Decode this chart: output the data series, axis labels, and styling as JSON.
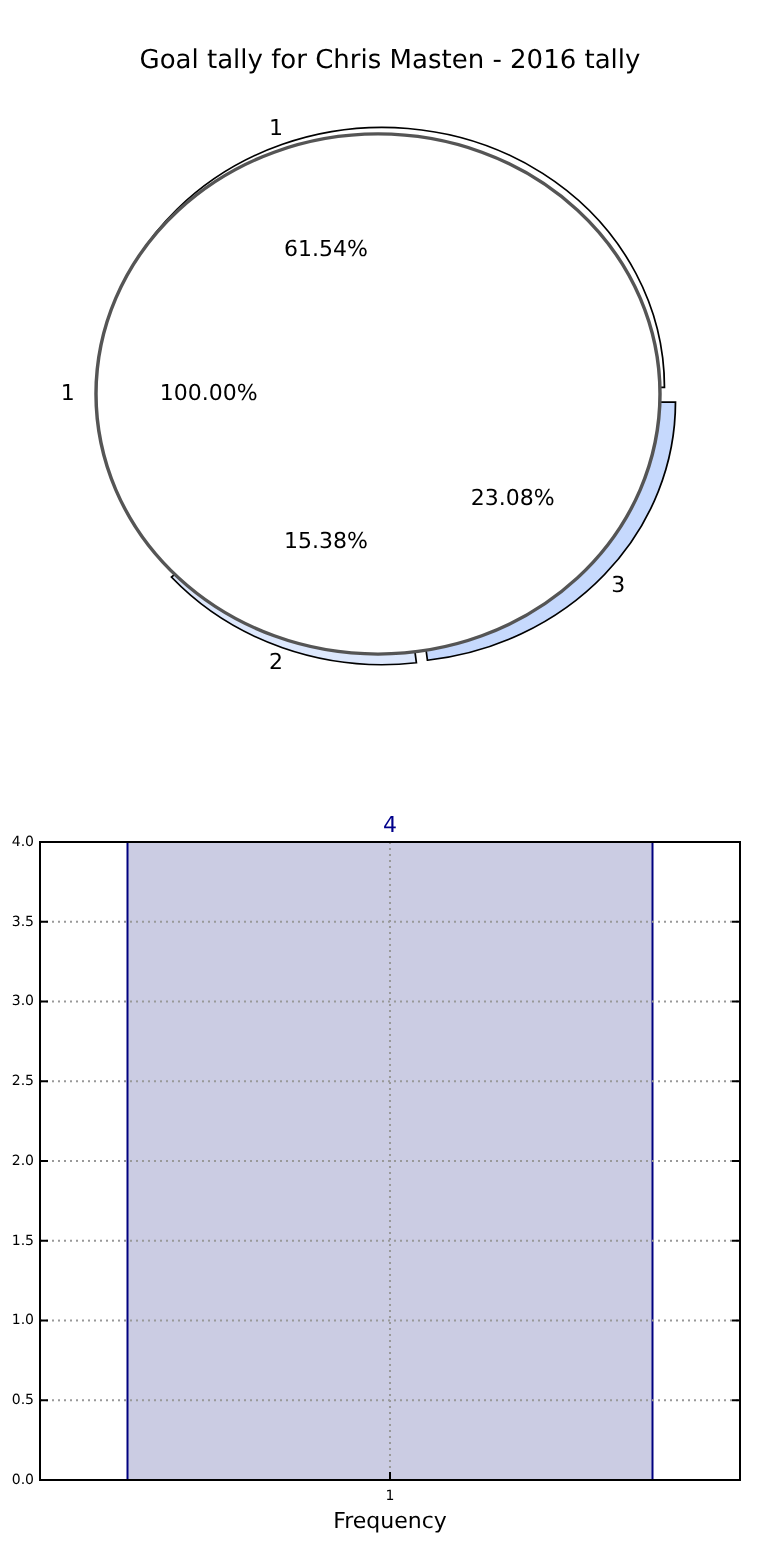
{
  "chart_data": [
    {
      "type": "pie",
      "title": "Goal tally for Chris Masten - 2016 tally",
      "categories": [
        "1",
        "2",
        "3"
      ],
      "values": [
        61.54,
        15.38,
        23.08
      ],
      "colors": [
        "#ffffff",
        "#dde8fd",
        "#c6d9fd"
      ],
      "value_labels": [
        "61.54%",
        "15.38%",
        "23.08%"
      ]
    },
    {
      "type": "pie",
      "categories": [
        "1"
      ],
      "values": [
        100
      ],
      "colors": [
        "#ffffff"
      ],
      "value_labels": [
        "100.00%"
      ]
    },
    {
      "type": "bar",
      "categories": [
        "1"
      ],
      "values": [
        4
      ],
      "color": "#cbcce3",
      "xlabel": "Frequency",
      "ylim": [
        0,
        4
      ],
      "yticks": [
        {
          "value": 0,
          "label": "0.0"
        },
        {
          "value": 0.5,
          "label": "0.5"
        },
        {
          "value": 1,
          "label": "1.0"
        },
        {
          "value": 1.5,
          "label": "1.5"
        },
        {
          "value": 2,
          "label": "2.0"
        },
        {
          "value": 2.5,
          "label": "2.5"
        },
        {
          "value": 3,
          "label": "3.0"
        },
        {
          "value": 3.5,
          "label": "3.5"
        },
        {
          "value": 4,
          "label": "4.0"
        }
      ],
      "grid": true,
      "data_labels": true
    }
  ]
}
